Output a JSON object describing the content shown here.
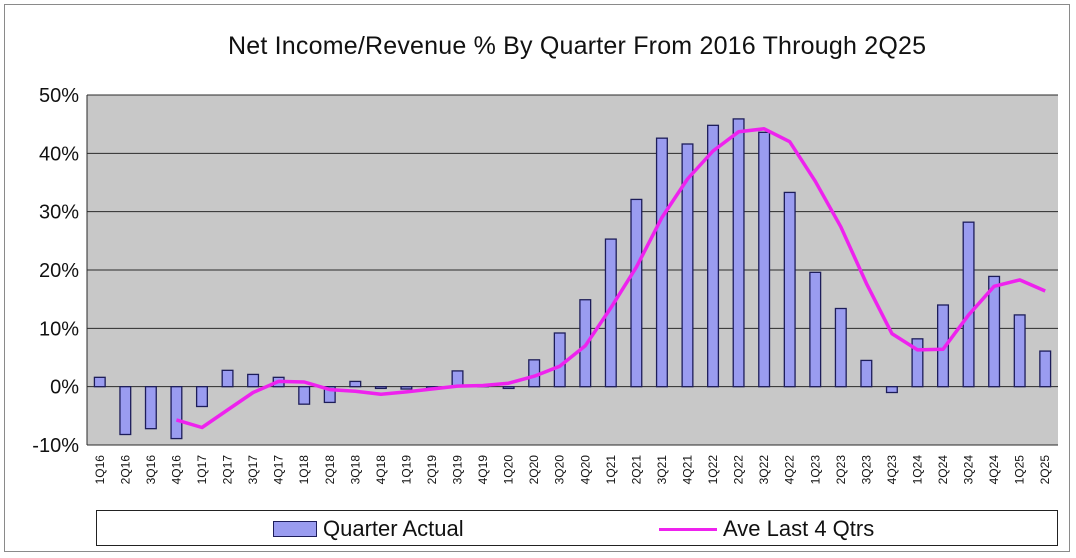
{
  "chart_data": {
    "type": "bar",
    "title": "Net Income/Revenue % By Quarter From 2016 Through 2Q25",
    "categories": [
      "1Q16",
      "2Q16",
      "3Q16",
      "4Q16",
      "1Q17",
      "2Q17",
      "3Q17",
      "4Q17",
      "1Q18",
      "2Q18",
      "3Q18",
      "4Q18",
      "1Q19",
      "2Q19",
      "3Q19",
      "4Q19",
      "1Q20",
      "2Q20",
      "3Q20",
      "4Q20",
      "1Q21",
      "2Q21",
      "3Q21",
      "4Q21",
      "1Q22",
      "2Q22",
      "3Q22",
      "4Q22",
      "1Q23",
      "2Q23",
      "3Q23",
      "4Q23",
      "1Q24",
      "2Q24",
      "3Q24",
      "4Q24",
      "1Q25",
      "2Q25"
    ],
    "series": [
      {
        "name": "Quarter Actual",
        "type": "bar",
        "color": "#9a9cf0",
        "values": [
          1.6,
          -8.2,
          -7.2,
          -8.9,
          -3.4,
          2.8,
          2.1,
          1.6,
          -3.0,
          -2.7,
          0.9,
          -0.3,
          -0.4,
          -0.2,
          2.7,
          0.3,
          -0.3,
          4.6,
          9.2,
          14.9,
          25.3,
          32.1,
          42.6,
          41.6,
          44.8,
          45.9,
          43.6,
          33.3,
          19.6,
          13.4,
          4.5,
          -1.0,
          8.2,
          14.0,
          28.2,
          18.9,
          12.3,
          6.1
        ]
      },
      {
        "name": "Ave Last 4 Qtrs",
        "type": "line",
        "color": "#ee22ee",
        "values": [
          null,
          null,
          null,
          -5.7,
          -7.0,
          -4.0,
          -1.0,
          0.9,
          0.8,
          -0.5,
          -0.8,
          -1.3,
          -0.9,
          -0.4,
          0.1,
          0.2,
          0.6,
          1.8,
          3.5,
          7.0,
          13.5,
          20.5,
          29.0,
          35.6,
          40.4,
          43.7,
          44.2,
          42.0,
          35.2,
          27.4,
          17.7,
          9.1,
          6.3,
          6.4,
          12.3,
          17.2,
          18.3,
          16.4
        ]
      }
    ],
    "yticks": [
      "50%",
      "40%",
      "30%",
      "20%",
      "10%",
      "0%",
      "-10%"
    ],
    "ylim": [
      -10,
      50
    ],
    "grid": true,
    "legend": "bottom",
    "plot_bg": "#c8c8c8"
  }
}
